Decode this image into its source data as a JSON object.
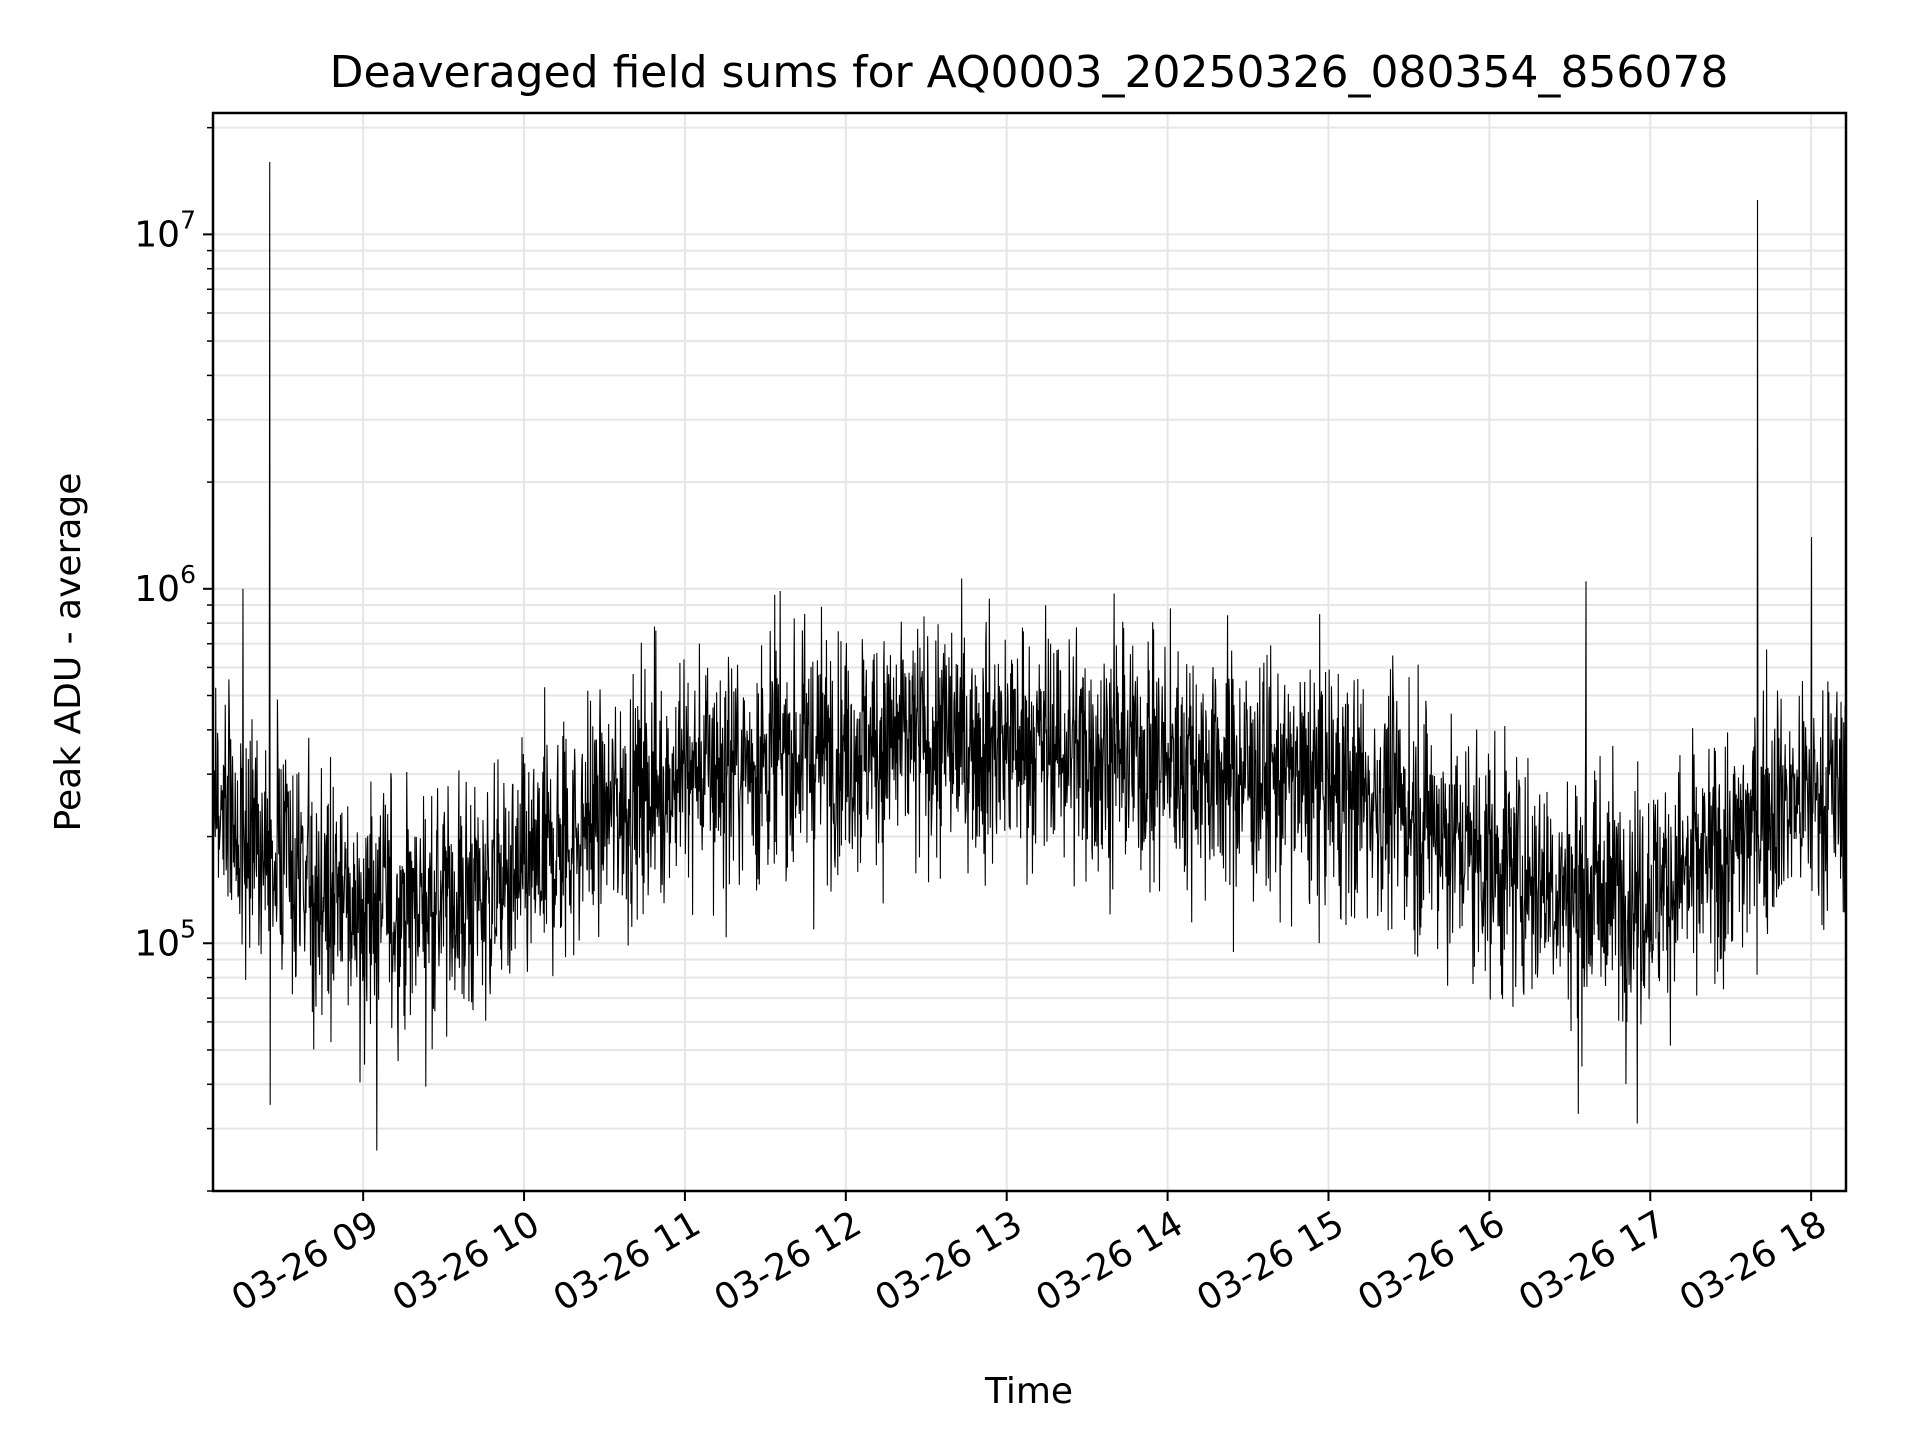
{
  "chart_data": {
    "type": "line",
    "title": "Deaveraged field sums for AQ0003_20250326_080354_856078",
    "xlabel": "Time",
    "ylabel": "Peak ADU - average",
    "yscale": "log",
    "ylim": [
      20000,
      22000000
    ],
    "xlim": [
      "03-26 08:04",
      "03-26 18:13"
    ],
    "grid": "on (major and minor)",
    "line_color": "#000000",
    "grid_color": "#e6e6e6",
    "x_ticks": [
      "03-26 09",
      "03-26 10",
      "03-26 11",
      "03-26 12",
      "03-26 13",
      "03-26 14",
      "03-26 15",
      "03-26 16",
      "03-26 17",
      "03-26 18"
    ],
    "y_ticks": [
      {
        "value": 100000,
        "base": "10",
        "exp": "5"
      },
      {
        "value": 1000000,
        "base": "10",
        "exp": "6"
      },
      {
        "value": 10000000,
        "base": "10",
        "exp": "7"
      }
    ],
    "series": [
      {
        "values": [
          {
            "x": "03-26 08:04",
            "y": 250000
          },
          {
            "x": "03-26 08:20",
            "y": 190000
          },
          {
            "x": "03-26 08:40",
            "y": 140000
          },
          {
            "x": "03-26 09:00",
            "y": 125000
          },
          {
            "x": "03-26 09:20",
            "y": 130000
          },
          {
            "x": "03-26 09:40",
            "y": 135000
          },
          {
            "x": "03-26 10:00",
            "y": 150000
          },
          {
            "x": "03-26 10:20",
            "y": 210000
          },
          {
            "x": "03-26 10:40",
            "y": 260000
          },
          {
            "x": "03-26 11:00",
            "y": 300000
          },
          {
            "x": "03-26 11:30",
            "y": 330000
          },
          {
            "x": "03-26 12:00",
            "y": 360000
          },
          {
            "x": "03-26 12:30",
            "y": 370000
          },
          {
            "x": "03-26 13:00",
            "y": 370000
          },
          {
            "x": "03-26 13:30",
            "y": 350000
          },
          {
            "x": "03-26 14:00",
            "y": 330000
          },
          {
            "x": "03-26 14:30",
            "y": 300000
          },
          {
            "x": "03-26 15:00",
            "y": 280000
          },
          {
            "x": "03-26 15:30",
            "y": 240000
          },
          {
            "x": "03-26 16:00",
            "y": 170000
          },
          {
            "x": "03-26 16:30",
            "y": 140000
          },
          {
            "x": "03-26 17:00",
            "y": 140000
          },
          {
            "x": "03-26 17:30",
            "y": 180000
          },
          {
            "x": "03-26 17:45",
            "y": 250000
          },
          {
            "x": "03-26 18:13",
            "y": 270000
          }
        ],
        "spikes": [
          {
            "x": "03-26 08:25",
            "y": 16000000
          },
          {
            "x": "03-26 17:40",
            "y": 12500000
          },
          {
            "x": "03-26 18:00",
            "y": 1400000
          },
          {
            "x": "03-26 16:36",
            "y": 1050000
          },
          {
            "x": "03-26 13:40",
            "y": 970000
          },
          {
            "x": "03-26 08:15",
            "y": 1000000
          },
          {
            "x": "03-26 08:25",
            "y": 35000
          },
          {
            "x": "03-26 09:05",
            "y": 26000
          },
          {
            "x": "03-26 16:55",
            "y": 31000
          },
          {
            "x": "03-26 16:33",
            "y": 33000
          }
        ]
      }
    ]
  }
}
